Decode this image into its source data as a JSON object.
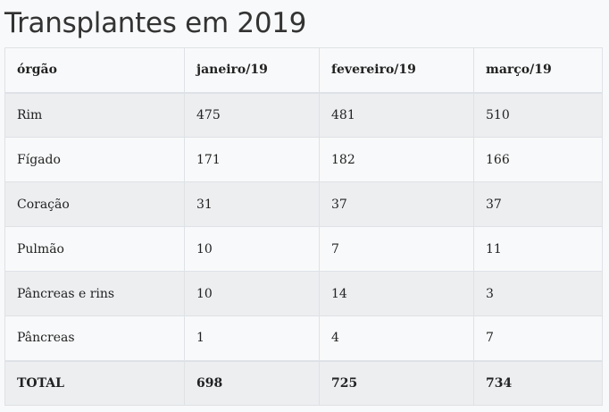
{
  "title": "Transplantes em 2019",
  "table": {
    "headers": [
      "órgão",
      "janeiro/19",
      "fevereiro/19",
      "março/19"
    ],
    "rows": [
      [
        "Rim",
        "475",
        "481",
        "510"
      ],
      [
        "Fígado",
        "171",
        "182",
        "166"
      ],
      [
        "Coração",
        "31",
        "37",
        "37"
      ],
      [
        "Pulmão",
        "10",
        "7",
        "11"
      ],
      [
        "Pâncreas e rins",
        "10",
        "14",
        "3"
      ],
      [
        "Pâncreas",
        "1",
        "4",
        "7"
      ],
      [
        "TOTAL",
        "698",
        "725",
        "734"
      ]
    ]
  }
}
